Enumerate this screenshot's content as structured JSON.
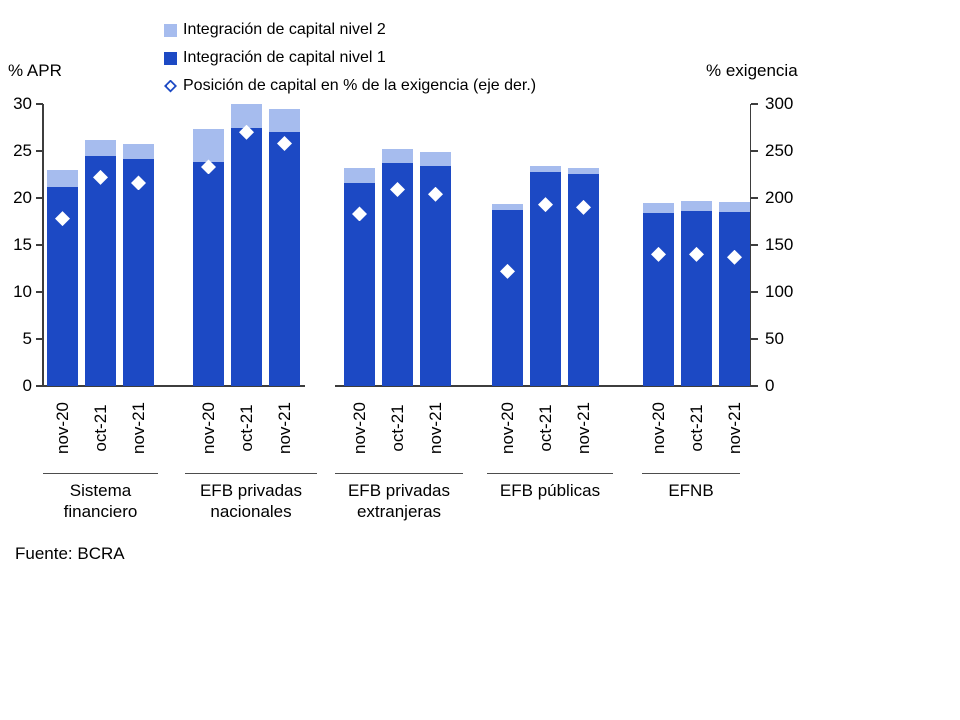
{
  "chart_data": {
    "type": "bar",
    "subtype": "stacked-bars-with-diamond-scatter-overlay",
    "title": "",
    "legend": [
      {
        "label": "Integración de capital nivel 2",
        "marker": "square",
        "color": "#A6BCEE"
      },
      {
        "label": "Integración de capital nivel 1",
        "marker": "square",
        "color": "#1C49C4"
      },
      {
        "label": "Posición de capital en % de la exigencia (eje der.)",
        "marker": "diamond-outline",
        "color": "#1C49C4"
      }
    ],
    "left_axis": {
      "label": "% APR",
      "min": 0,
      "max": 30,
      "ticks": [
        0,
        5,
        10,
        15,
        20,
        25,
        30
      ]
    },
    "right_axis": {
      "label": "% exigencia",
      "min": 0,
      "max": 300,
      "ticks": [
        0,
        50,
        100,
        150,
        200,
        250,
        300
      ]
    },
    "categories": [
      "nov-20",
      "oct-21",
      "nov-21"
    ],
    "groups": [
      {
        "label": "Sistema financiero",
        "bars": [
          {
            "month": "nov-20",
            "nivel1": 21.2,
            "nivel2": 1.8,
            "posicion": 178
          },
          {
            "month": "oct-21",
            "nivel1": 24.5,
            "nivel2": 1.7,
            "posicion": 222
          },
          {
            "month": "nov-21",
            "nivel1": 24.1,
            "nivel2": 1.6,
            "posicion": 216
          }
        ]
      },
      {
        "label": "EFB privadas nacionales",
        "bars": [
          {
            "month": "nov-20",
            "nivel1": 23.8,
            "nivel2": 3.5,
            "posicion": 233
          },
          {
            "month": "oct-21",
            "nivel1": 27.5,
            "nivel2": 2.5,
            "posicion": 270
          },
          {
            "month": "nov-21",
            "nivel1": 27.0,
            "nivel2": 2.5,
            "posicion": 258
          }
        ]
      },
      {
        "label": "EFB privadas extranjeras",
        "bars": [
          {
            "month": "nov-20",
            "nivel1": 21.6,
            "nivel2": 1.6,
            "posicion": 183
          },
          {
            "month": "oct-21",
            "nivel1": 23.7,
            "nivel2": 1.5,
            "posicion": 209
          },
          {
            "month": "nov-21",
            "nivel1": 23.4,
            "nivel2": 1.5,
            "posicion": 204
          }
        ]
      },
      {
        "label": "EFB públicas",
        "bars": [
          {
            "month": "nov-20",
            "nivel1": 18.7,
            "nivel2": 0.7,
            "posicion": 122
          },
          {
            "month": "oct-21",
            "nivel1": 22.8,
            "nivel2": 0.6,
            "posicion": 193
          },
          {
            "month": "nov-21",
            "nivel1": 22.6,
            "nivel2": 0.6,
            "posicion": 190
          }
        ]
      },
      {
        "label": "EFNB",
        "bars": [
          {
            "month": "nov-20",
            "nivel1": 18.4,
            "nivel2": 1.1,
            "posicion": 140
          },
          {
            "month": "oct-21",
            "nivel1": 18.6,
            "nivel2": 1.1,
            "posicion": 140
          },
          {
            "month": "nov-21",
            "nivel1": 18.5,
            "nivel2": 1.1,
            "posicion": 137
          }
        ]
      }
    ],
    "source": "Fuente: BCRA",
    "colors": {
      "nivel1": "#1C49C4",
      "nivel2": "#A6BCEE",
      "diamond_fill": "#ffffff",
      "axis": "#3d3d3d",
      "separator": "#4d4d4d",
      "text": "#000000"
    }
  }
}
